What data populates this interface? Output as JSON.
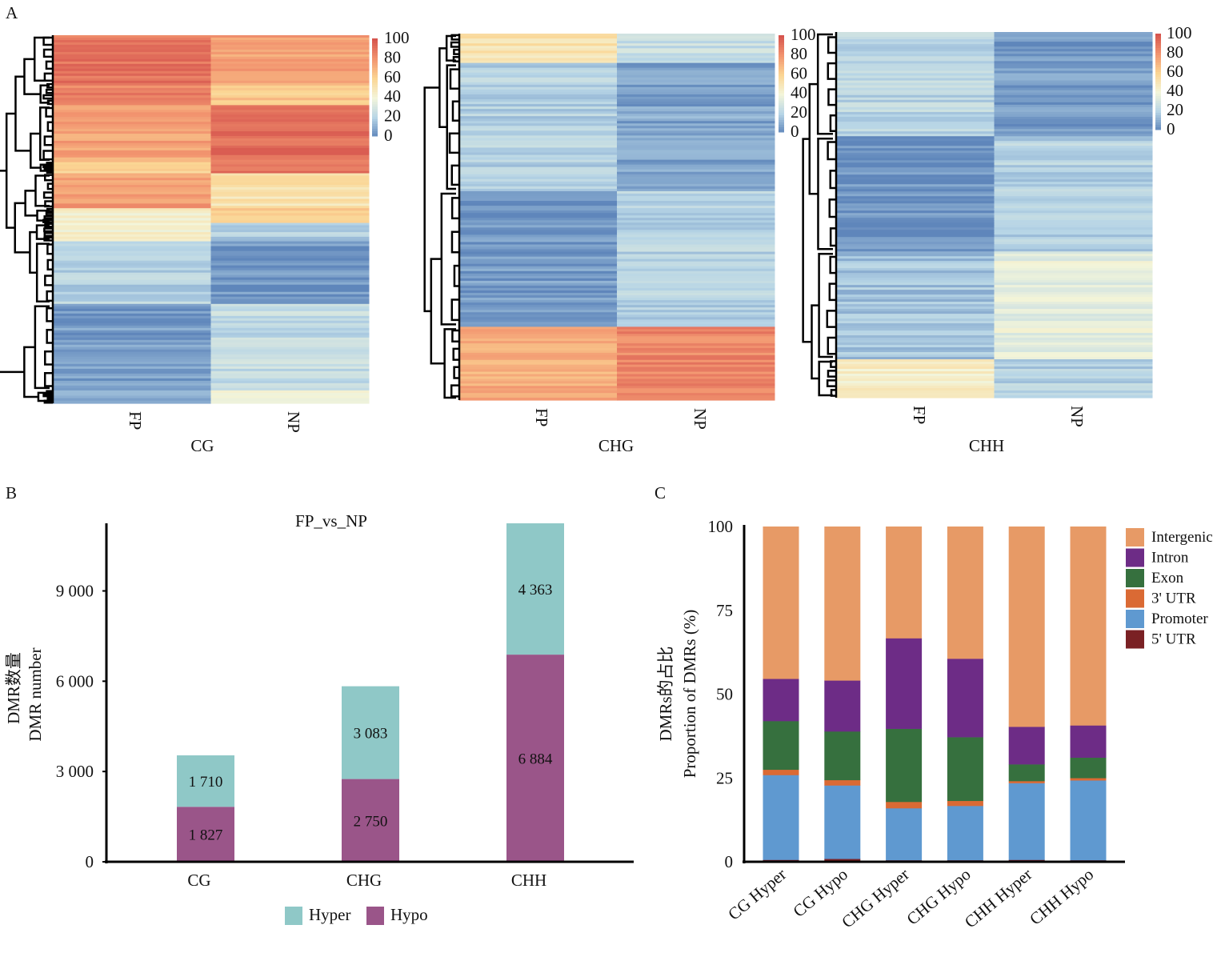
{
  "panel_labels": {
    "a": "A",
    "b": "B",
    "c": "C"
  },
  "colors": {
    "scale": [
      "#5f86bb",
      "#b7d5e6",
      "#f3f5da",
      "#fbd593",
      "#f2946f",
      "#d6554e"
    ],
    "hyper": "#8fc8c7",
    "hypo": "#9a5589",
    "intergenic": "#e79a66",
    "intron": "#6d2c86",
    "exon": "#36703e",
    "utr3": "#da6a34",
    "promoter": "#5f99d0",
    "utr5": "#7a2124"
  },
  "chart_data": [
    {
      "type": "heatmap",
      "title": "CG",
      "columns": [
        "FP",
        "NP"
      ],
      "colorbar": {
        "min": 0,
        "max": 100,
        "ticks": [
          "100",
          "80",
          "60",
          "40",
          "20",
          "0"
        ]
      },
      "row_clusters": [
        {
          "share": 0.13,
          "FP": 90,
          "NP": 76
        },
        {
          "share": 0.06,
          "FP": 86,
          "NP": 64
        },
        {
          "share": 0.155,
          "FP": 75,
          "NP": 92
        },
        {
          "share": 0.03,
          "FP": 58,
          "NP": 90
        },
        {
          "share": 0.095,
          "FP": 78,
          "NP": 52
        },
        {
          "share": 0.04,
          "FP": 42,
          "NP": 60
        },
        {
          "share": 0.05,
          "FP": 42,
          "NP": 18
        },
        {
          "share": 0.17,
          "FP": 20,
          "NP": 4
        },
        {
          "share": 0.235,
          "FP": 5,
          "NP": 24
        },
        {
          "share": 0.035,
          "FP": 8,
          "NP": 42
        }
      ]
    },
    {
      "type": "heatmap",
      "title": "CHG",
      "columns": [
        "FP",
        "NP"
      ],
      "colorbar": {
        "min": 0,
        "max": 100,
        "ticks": [
          "100",
          "80",
          "60",
          "40",
          "20",
          "0"
        ]
      },
      "row_clusters": [
        {
          "share": 0.08,
          "FP": 52,
          "NP": 25
        },
        {
          "share": 0.35,
          "FP": 20,
          "NP": 8
        },
        {
          "share": 0.37,
          "FP": 5,
          "NP": 20
        },
        {
          "share": 0.2,
          "FP": 72,
          "NP": 84
        }
      ]
    },
    {
      "type": "heatmap",
      "title": "CHH",
      "columns": [
        "FP",
        "NP"
      ],
      "colorbar": {
        "min": 0,
        "max": 100,
        "ticks": [
          "100",
          "80",
          "60",
          "40",
          "20",
          "0"
        ]
      },
      "row_clusters": [
        {
          "share": 0.285,
          "FP": 22,
          "NP": 5
        },
        {
          "share": 0.315,
          "FP": 3,
          "NP": 20
        },
        {
          "share": 0.295,
          "FP": 16,
          "NP": 36
        },
        {
          "share": 0.105,
          "FP": 45,
          "NP": 20
        }
      ]
    },
    {
      "type": "bar",
      "stacked": true,
      "title": "FP_vs_NP",
      "xlabel": "",
      "ylabel": [
        "DMR数量",
        "DMR number"
      ],
      "ylim": [
        0,
        11247
      ],
      "yticks": [
        {
          "value": 0,
          "label": "0"
        },
        {
          "value": 3000,
          "label": "3 000"
        },
        {
          "value": 6000,
          "label": "6 000"
        },
        {
          "value": 9000,
          "label": "9 000"
        }
      ],
      "categories": [
        "CG",
        "CHG",
        "CHH"
      ],
      "series": [
        {
          "name": "Hypo",
          "values": [
            1827,
            2750,
            6884
          ],
          "labels": [
            "1 827",
            "2 750",
            "6 884"
          ]
        },
        {
          "name": "Hyper",
          "values": [
            1710,
            3083,
            4363
          ],
          "labels": [
            "1 710",
            "3 083",
            "4 363"
          ]
        }
      ],
      "legend": [
        "Hyper",
        "Hypo"
      ],
      "legend_position": "bottom"
    },
    {
      "type": "bar",
      "stacked": true,
      "title": "",
      "ylabel": [
        "DMRs的占比",
        "Proportion of DMRs (%)"
      ],
      "ylim": [
        0,
        100
      ],
      "yticks": [
        "0",
        "25",
        "50",
        "75",
        "100"
      ],
      "categories": [
        "CG Hyper",
        "CG Hypo",
        "CHG Hyper",
        "CHG Hypo",
        "CHH Hyper",
        "CHH Hypo"
      ],
      "series": [
        {
          "name": "5' UTR",
          "key": "utr5",
          "values": [
            0.6,
            0.9,
            0.5,
            0.5,
            0.6,
            0.5
          ]
        },
        {
          "name": "Promoter",
          "key": "promoter",
          "values": [
            25.3,
            21.9,
            15.5,
            16.2,
            22.9,
            23.8
          ]
        },
        {
          "name": "3' UTR",
          "key": "utr3",
          "values": [
            1.6,
            1.6,
            1.9,
            1.5,
            0.6,
            0.7
          ]
        },
        {
          "name": "Exon",
          "key": "exon",
          "values": [
            14.5,
            14.5,
            21.8,
            19.0,
            5.0,
            6.1
          ]
        },
        {
          "name": "Intron",
          "key": "intron",
          "values": [
            12.6,
            15.2,
            27.0,
            23.4,
            11.2,
            9.6
          ]
        },
        {
          "name": "Intergenic",
          "key": "intergenic",
          "values": [
            45.4,
            45.9,
            33.3,
            39.4,
            59.7,
            59.3
          ]
        }
      ],
      "legend": [
        "Intergenic",
        "Intron",
        "Exon",
        "3' UTR",
        "Promoter",
        "5' UTR"
      ],
      "legend_position": "right"
    }
  ]
}
